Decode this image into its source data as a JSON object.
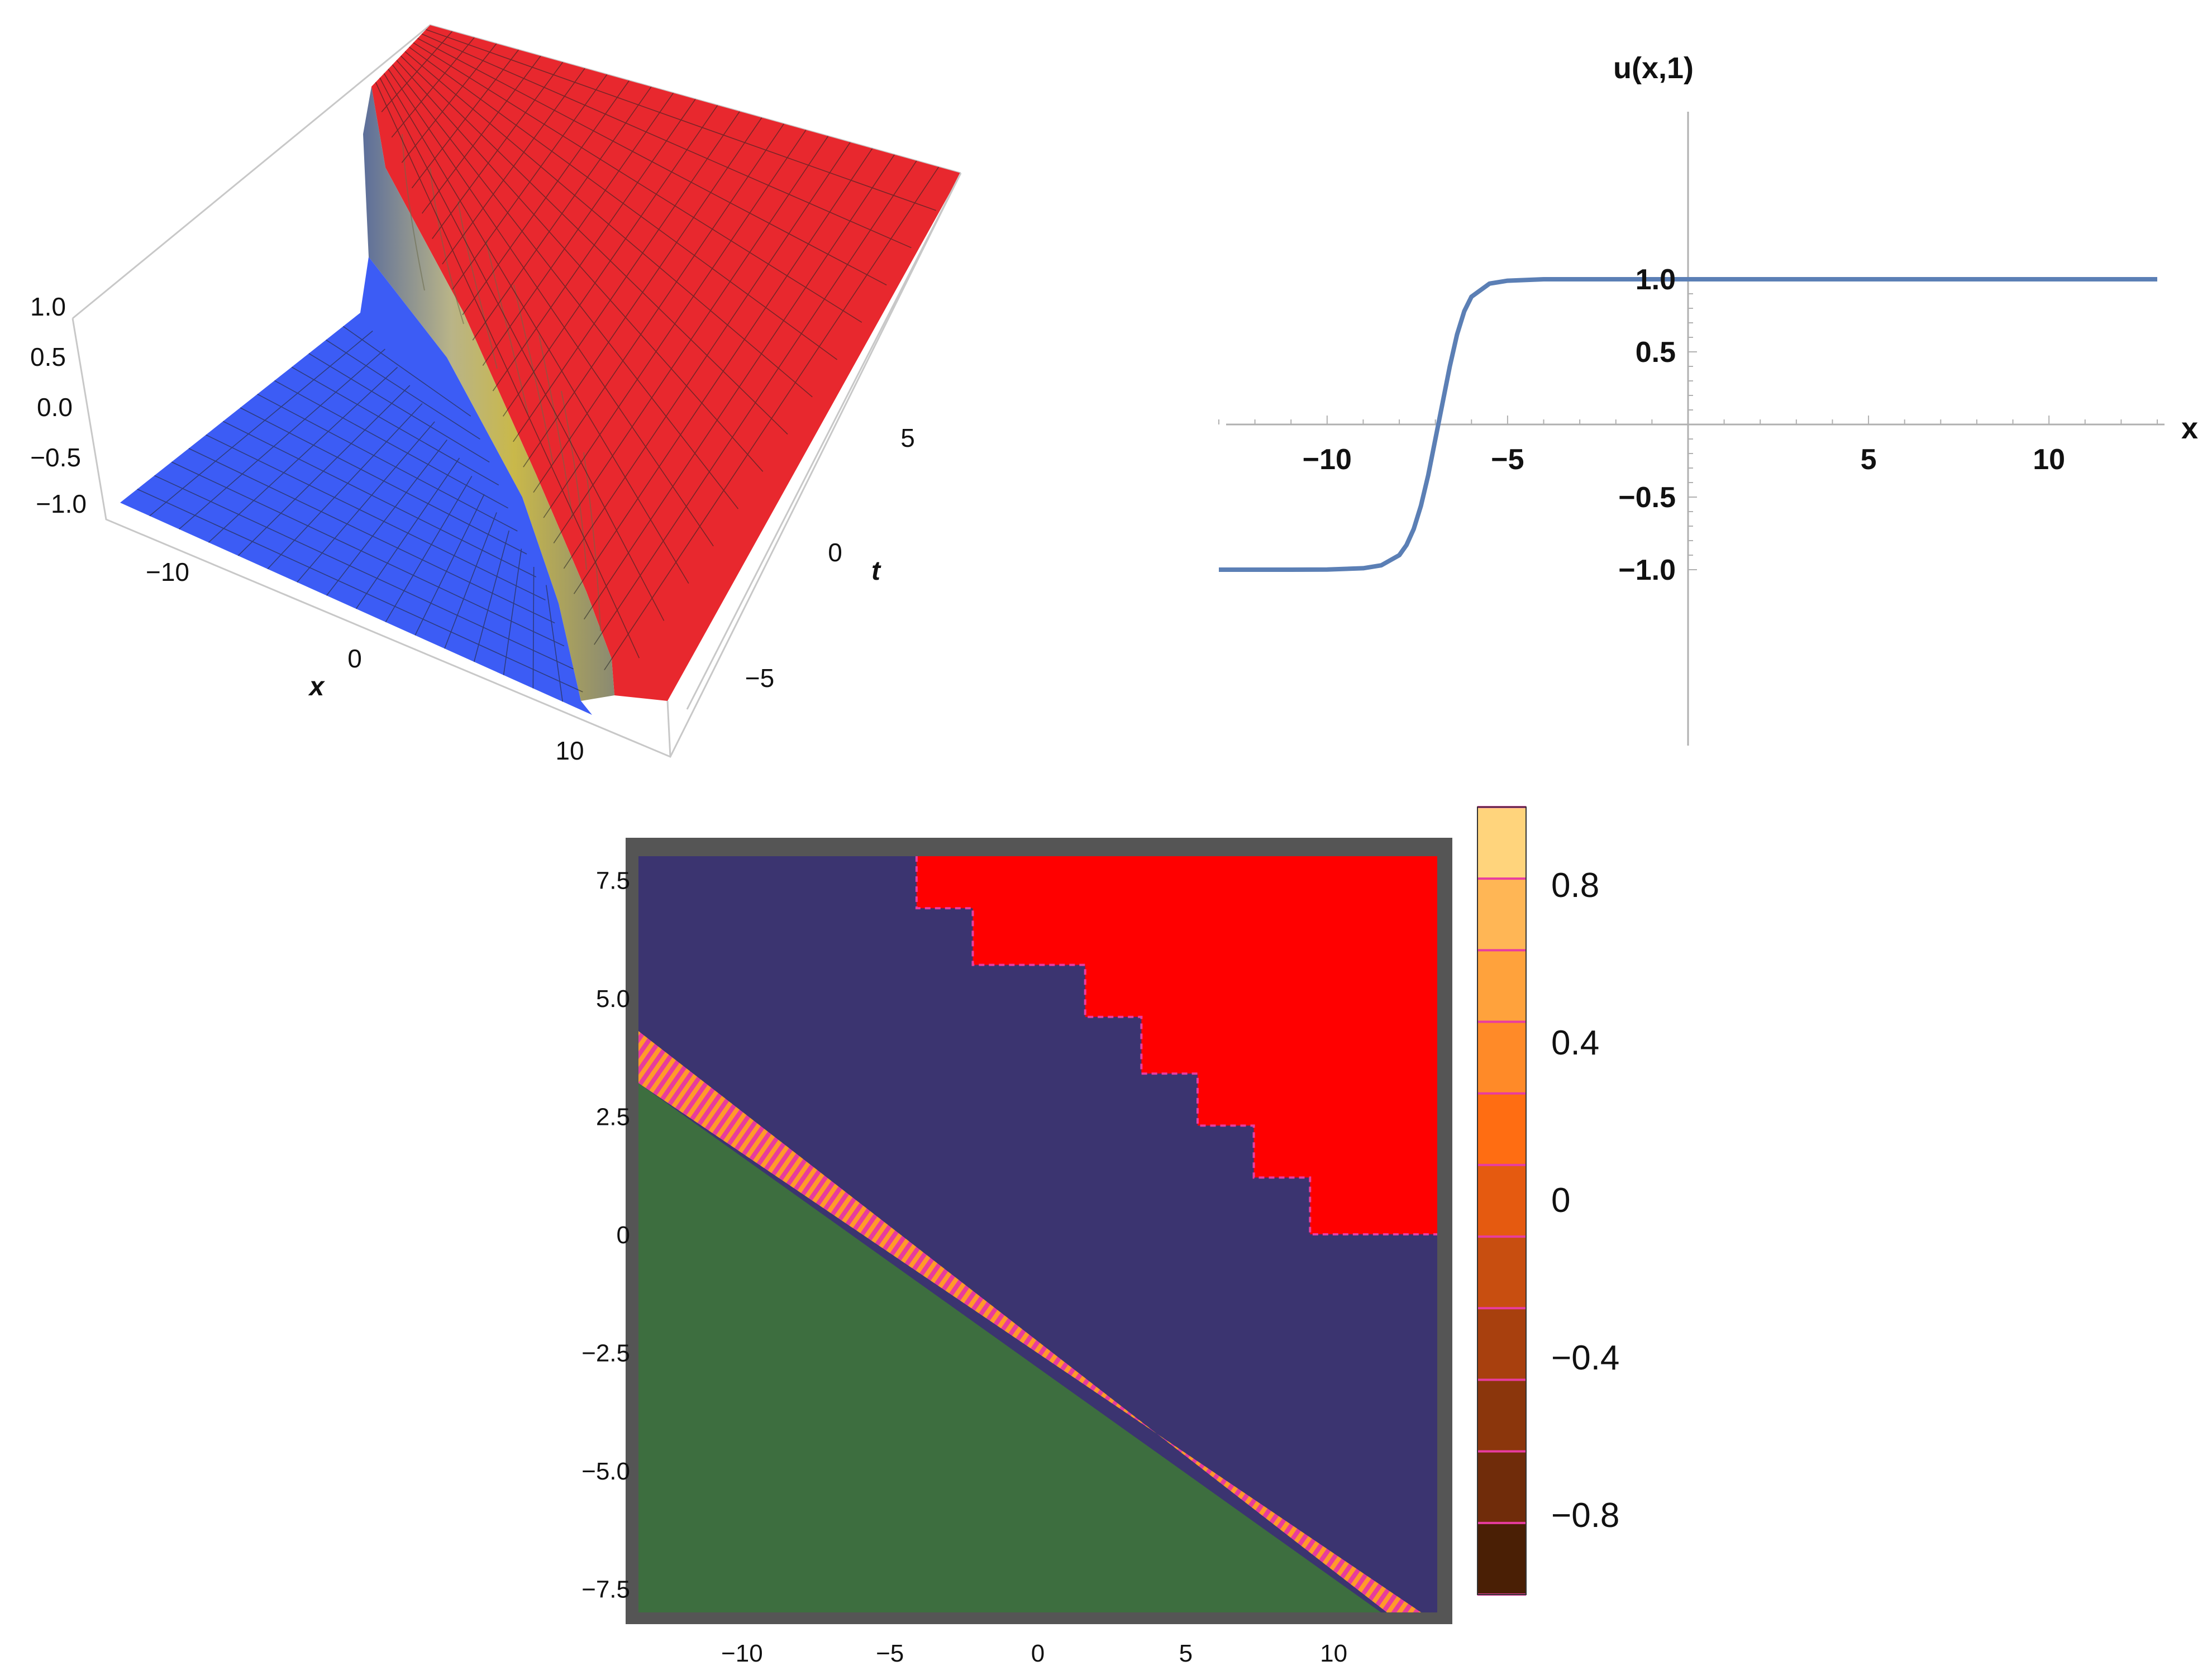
{
  "chart_data": [
    {
      "type": "surface3d",
      "title": "",
      "xlabel": "x",
      "ylabel": "t",
      "zlabel": "",
      "x_ticks": [
        "−10",
        "0",
        "10"
      ],
      "t_ticks": [
        "−5",
        "0",
        "5"
      ],
      "z_ticks": [
        "1.0",
        "0.5",
        "0.0",
        "−0.5",
        "−1.0"
      ],
      "xlim": [
        -13,
        13
      ],
      "tlim": [
        -8,
        8
      ],
      "zlim": [
        -1.1,
        1.1
      ],
      "low_value": -1,
      "high_value": 1,
      "low_color": "#3c5cf5",
      "high_color": "#e8282e",
      "transition": "kink along x + t = const"
    },
    {
      "type": "line",
      "title": "",
      "xlabel": "x",
      "ylabel": "u(x,1)",
      "x_ticks": [
        "−10",
        "−5",
        "5",
        "10"
      ],
      "y_ticks": [
        "1.0",
        "0.5",
        "−0.5",
        "−1.0"
      ],
      "xlim": [
        -13,
        13
      ],
      "ylim": [
        -1,
        1
      ],
      "series": [
        {
          "color": "#5b7fb5",
          "x": [
            -13,
            -11,
            -10,
            -9,
            -8.5,
            -8,
            -7.8,
            -7.6,
            -7.4,
            -7.2,
            -7.0,
            -6.8,
            -6.6,
            -6.4,
            -6.2,
            -6.0,
            -5.5,
            -5,
            -4,
            -2,
            0,
            5,
            10,
            13
          ],
          "y": [
            -1.0,
            -1.0,
            -0.999,
            -0.99,
            -0.97,
            -0.9,
            -0.83,
            -0.72,
            -0.56,
            -0.35,
            -0.1,
            0.15,
            0.4,
            0.62,
            0.78,
            0.88,
            0.97,
            0.99,
            1.0,
            1.0,
            1.0,
            1.0,
            1.0,
            1.0
          ]
        }
      ]
    },
    {
      "type": "heatmap",
      "title": "",
      "xlabel": "",
      "ylabel": "",
      "x_ticks": [
        "−10",
        "−5",
        "0",
        "5",
        "10"
      ],
      "y_ticks": [
        "7.5",
        "5.0",
        "2.5",
        "0",
        "−2.5",
        "−5.0",
        "−7.5"
      ],
      "xlim": [
        -13.5,
        13.5
      ],
      "ylim": [
        -8,
        8
      ],
      "legend_ticks": [
        "0.8",
        "0.4",
        "0",
        "−0.4",
        "−0.8"
      ],
      "legend_range": [
        -1,
        1
      ],
      "regions": [
        {
          "name": "low",
          "color": "#3d6e3f"
        },
        {
          "name": "middle",
          "color": "#3b3470"
        },
        {
          "name": "high",
          "color": "#ff0000"
        }
      ],
      "stripe_colors": [
        "#ff9a2a",
        "#e83c9c"
      ],
      "frame_color": "#555555",
      "colorbar": [
        "#4a1f05",
        "#702c0a",
        "#8b360c",
        "#a8400e",
        "#c84e10",
        "#e55a10",
        "#ff6d12",
        "#ff8a28",
        "#ffa23c",
        "#ffb655",
        "#ffd47c"
      ],
      "colorbar_line_color": "#e83ca0",
      "red_boundary": [
        {
          "x": -4.1,
          "y": 8.0
        },
        {
          "x": -4.1,
          "y": 6.9
        },
        {
          "x": -2.2,
          "y": 6.9
        },
        {
          "x": -2.2,
          "y": 5.7
        },
        {
          "x": 1.6,
          "y": 5.7
        },
        {
          "x": 1.6,
          "y": 4.6
        },
        {
          "x": 3.5,
          "y": 4.6
        },
        {
          "x": 3.5,
          "y": 3.4
        },
        {
          "x": 5.4,
          "y": 3.4
        },
        {
          "x": 5.4,
          "y": 2.3
        },
        {
          "x": 7.3,
          "y": 2.3
        },
        {
          "x": 7.3,
          "y": 1.2
        },
        {
          "x": 9.2,
          "y": 1.2
        },
        {
          "x": 9.2,
          "y": 0.0
        },
        {
          "x": 13.5,
          "y": 0.0
        }
      ]
    }
  ]
}
